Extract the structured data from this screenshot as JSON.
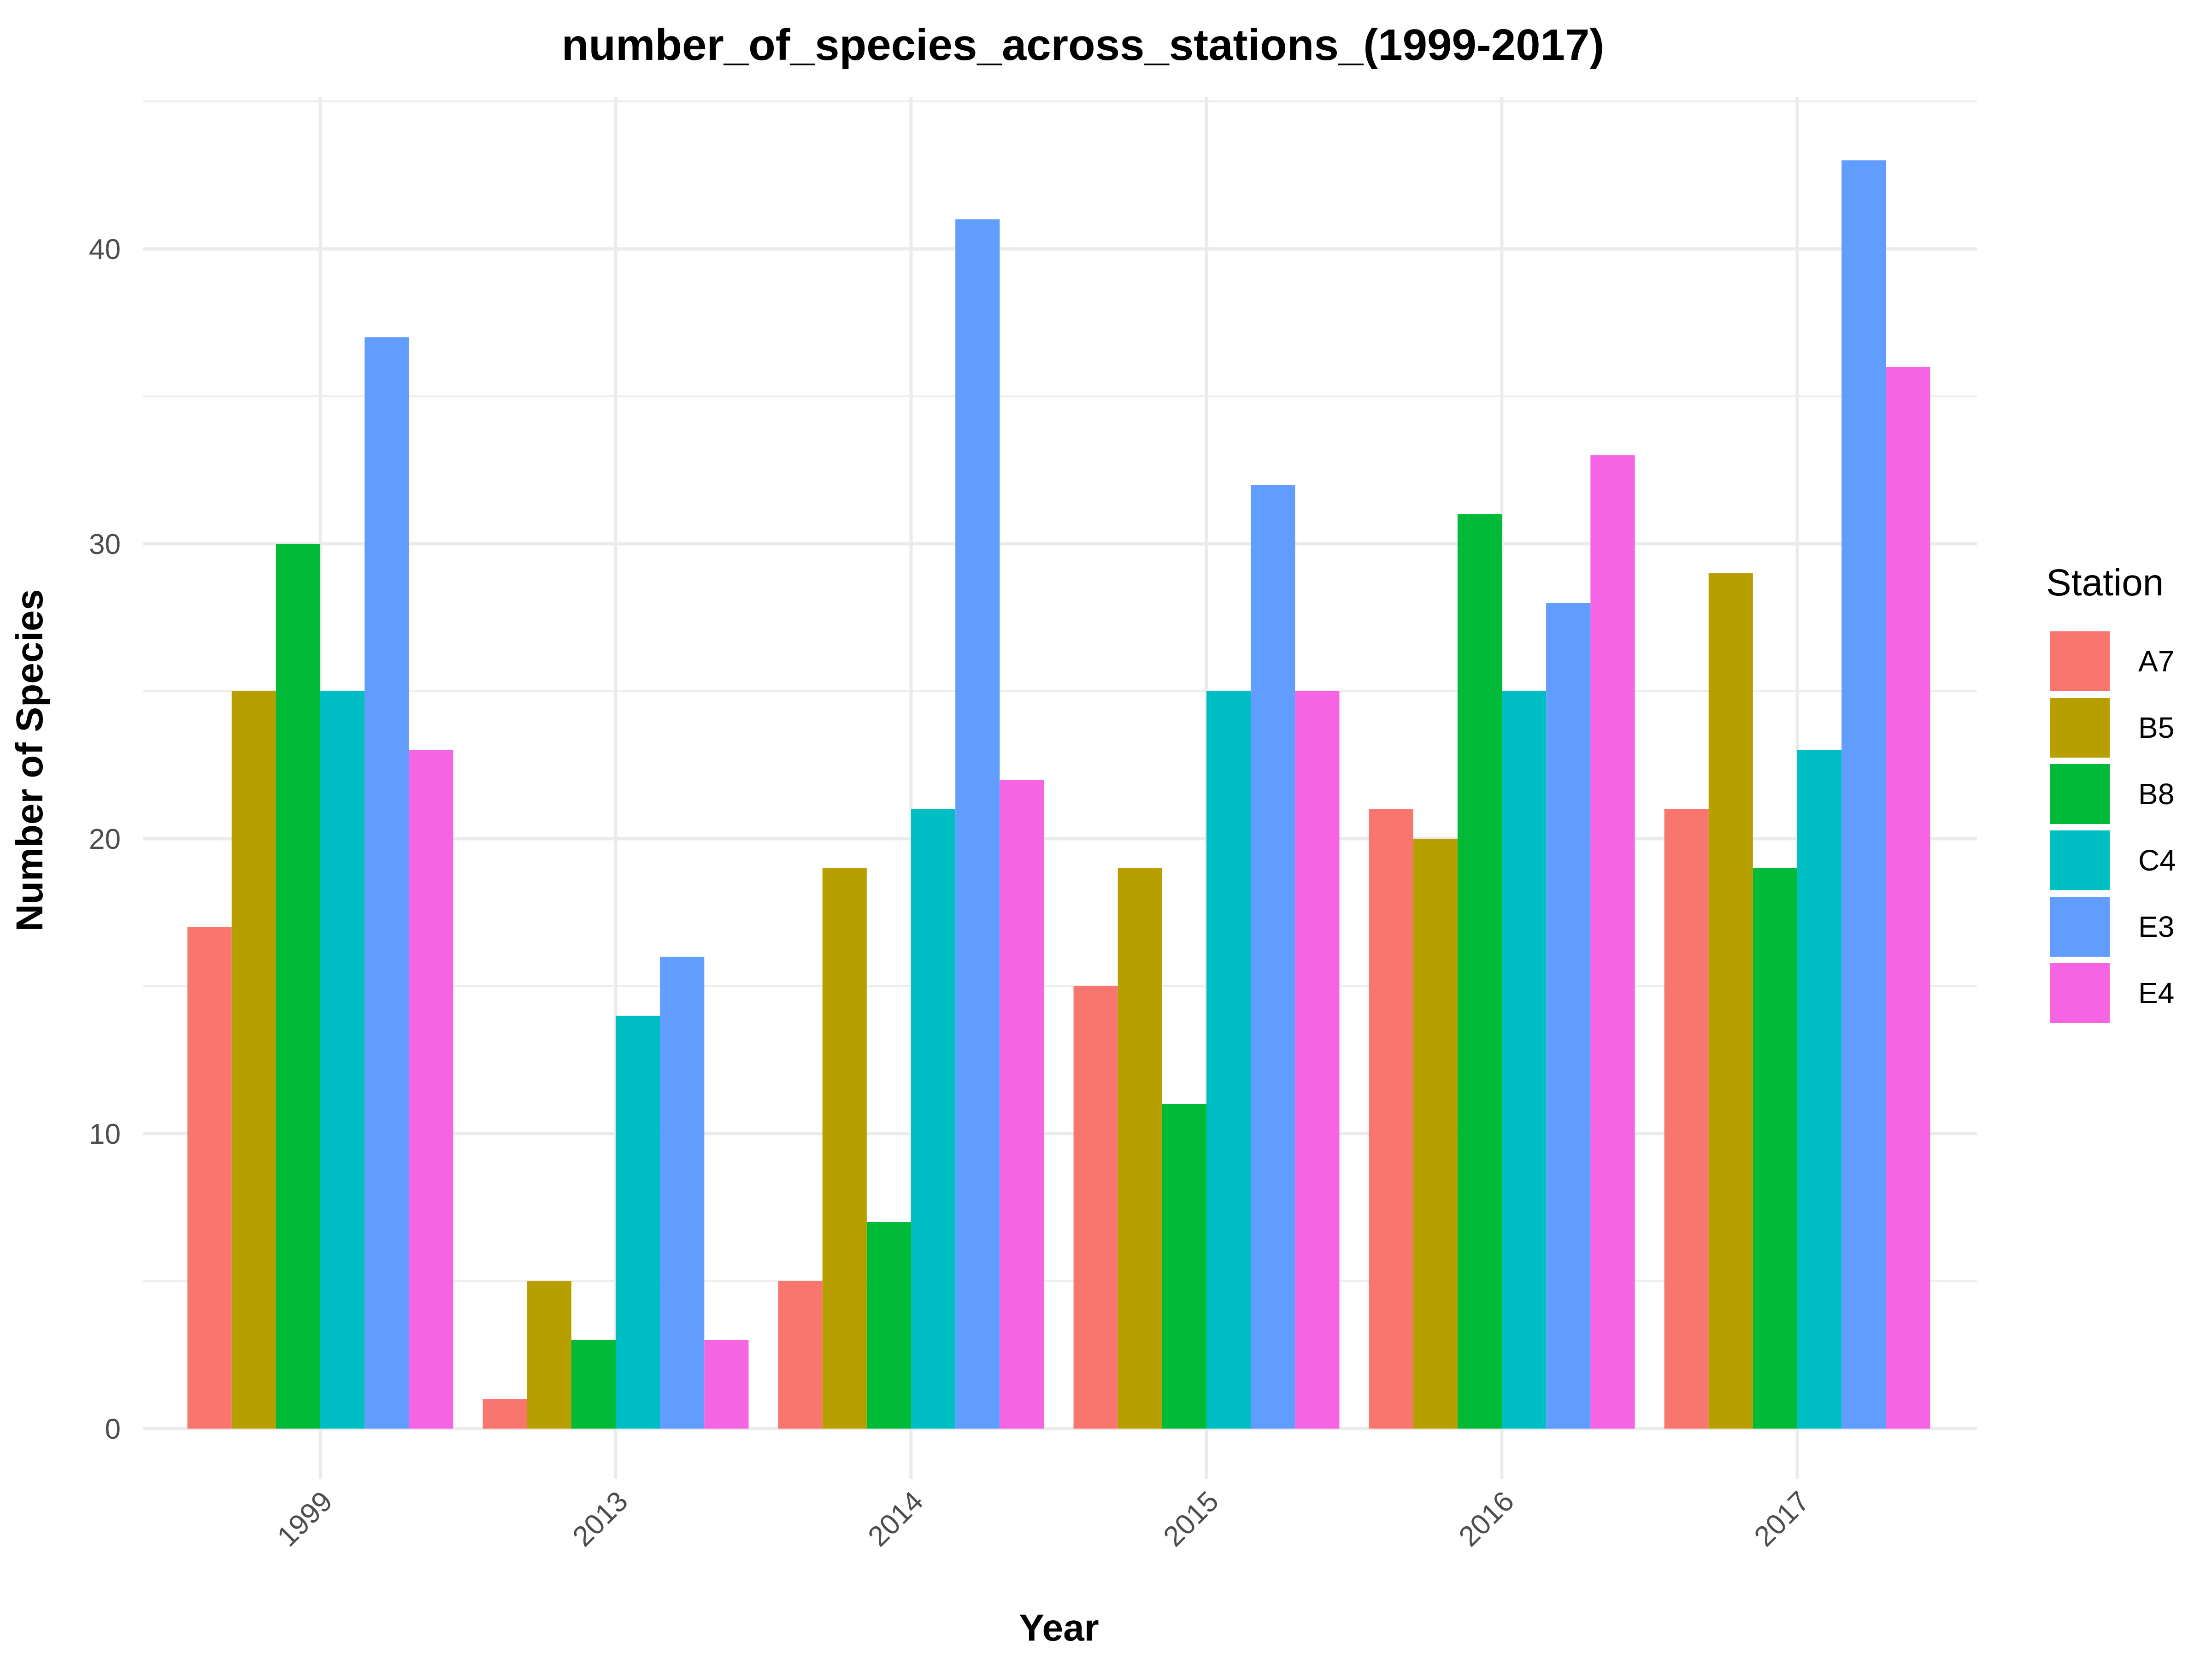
{
  "chart_data": {
    "type": "bar",
    "title": "number_of_species_across_stations_(1999-2017)",
    "xlabel": "Year",
    "ylabel": "Number of Species",
    "categories": [
      "1999",
      "2013",
      "2014",
      "2015",
      "2016",
      "2017"
    ],
    "ylim": [
      0,
      45
    ],
    "yticks": [
      0,
      10,
      20,
      30,
      40
    ],
    "grid": true,
    "legend": {
      "title": "Station",
      "position": "right"
    },
    "series": [
      {
        "name": "A7",
        "color": "#F8766D",
        "values": [
          17,
          1,
          5,
          15,
          21,
          21
        ]
      },
      {
        "name": "B5",
        "color": "#B79F00",
        "values": [
          25,
          5,
          19,
          19,
          20,
          29
        ]
      },
      {
        "name": "B8",
        "color": "#00BA38",
        "values": [
          30,
          3,
          7,
          11,
          31,
          19
        ]
      },
      {
        "name": "C4",
        "color": "#00BFC4",
        "values": [
          25,
          14,
          21,
          25,
          25,
          23
        ]
      },
      {
        "name": "E3",
        "color": "#619CFF",
        "values": [
          37,
          16,
          41,
          32,
          28,
          43
        ]
      },
      {
        "name": "E4",
        "color": "#F564E3",
        "values": [
          23,
          3,
          22,
          25,
          33,
          36
        ]
      }
    ]
  }
}
